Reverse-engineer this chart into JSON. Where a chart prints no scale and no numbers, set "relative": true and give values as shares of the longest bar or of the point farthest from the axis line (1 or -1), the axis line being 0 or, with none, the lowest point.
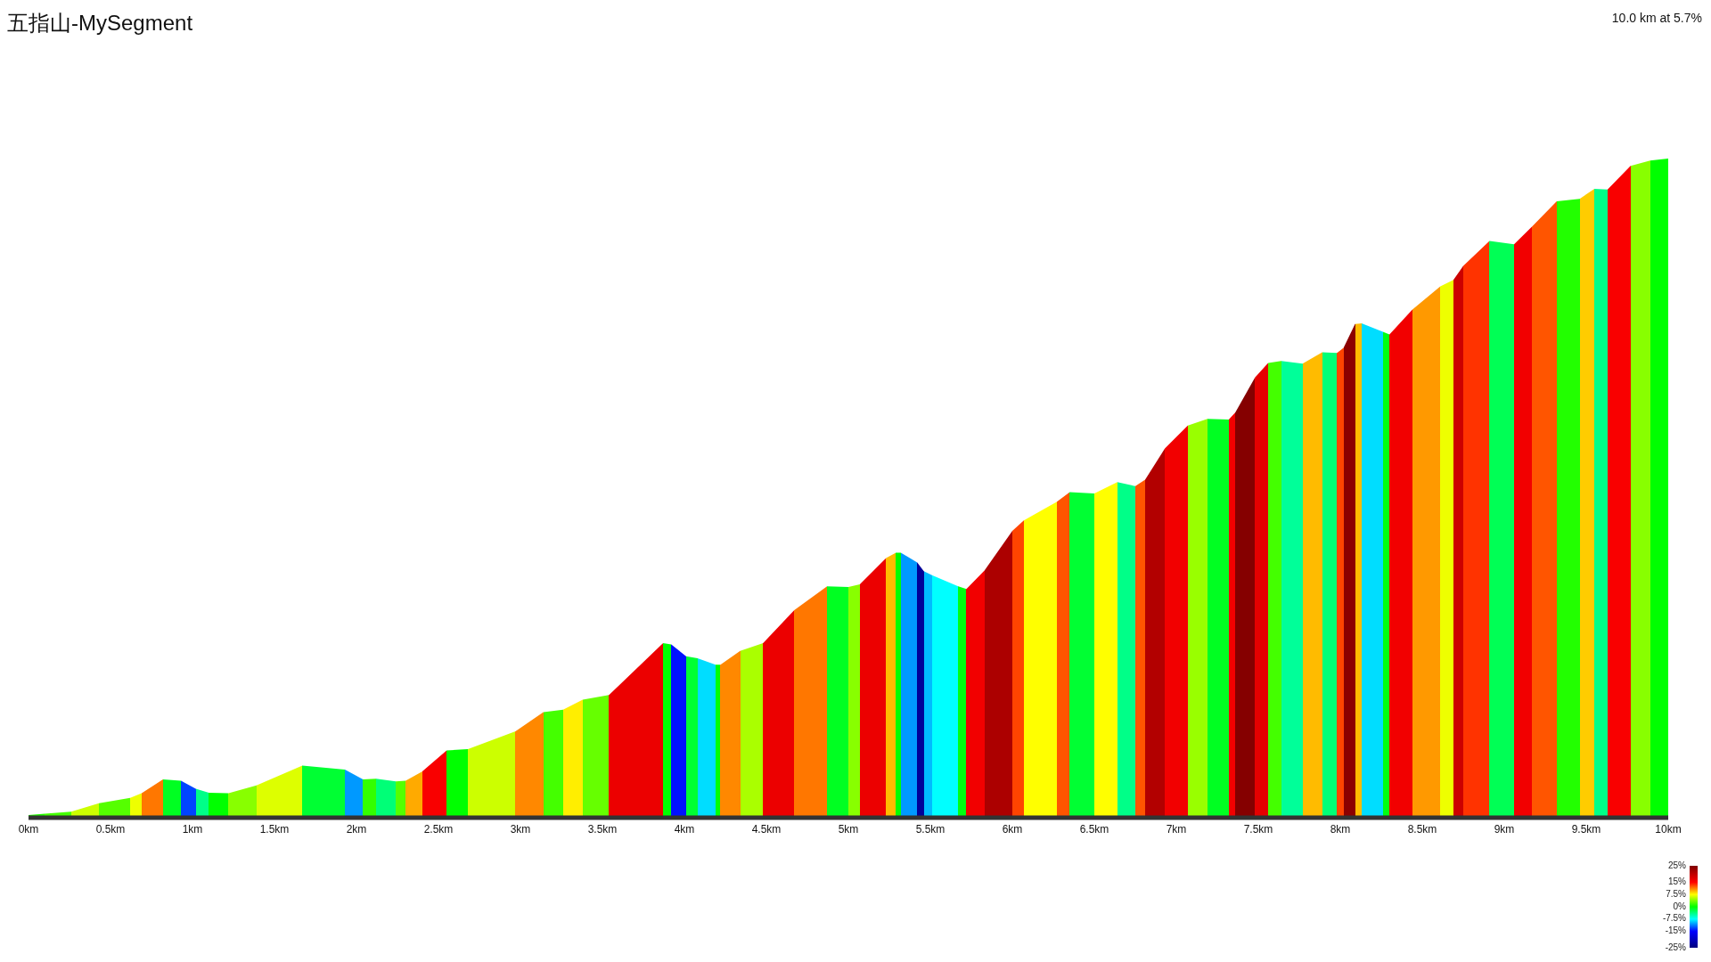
{
  "chart_data": {
    "type": "area",
    "title": "五指山-MySegment",
    "subtitle": "10.0 km at 5.7%",
    "relative": true,
    "x": [
      0,
      0.1,
      0.26,
      0.43,
      0.62,
      0.69,
      0.82,
      0.93,
      1.02,
      1.1,
      1.22,
      1.39,
      1.67,
      1.93,
      2.04,
      2.12,
      2.24,
      2.3,
      2.4,
      2.55,
      2.68,
      2.97,
      3.14,
      3.26,
      3.38,
      3.54,
      3.87,
      3.92,
      4.01,
      4.08,
      4.19,
      4.22,
      4.34,
      4.48,
      4.67,
      4.87,
      5.0,
      5.07,
      5.23,
      5.29,
      5.32,
      5.42,
      5.46,
      5.51,
      5.67,
      5.72,
      5.83,
      6.0,
      6.07,
      6.27,
      6.35,
      6.5,
      6.64,
      6.75,
      6.81,
      6.93,
      7.07,
      7.19,
      7.32,
      7.36,
      7.48,
      7.56,
      7.64,
      7.77,
      7.89,
      7.98,
      8.02,
      8.09,
      8.13,
      8.26,
      8.3,
      8.44,
      8.61,
      8.69,
      8.75,
      8.91,
      9.06,
      9.17,
      9.32,
      9.46,
      9.55,
      9.63,
      9.77,
      9.89,
      10
    ],
    "values": [
      0.004,
      0.006,
      0.009,
      0.022,
      0.03,
      0.037,
      0.058,
      0.056,
      0.044,
      0.038,
      0.037,
      0.049,
      0.079,
      0.073,
      0.058,
      0.059,
      0.055,
      0.056,
      0.07,
      0.102,
      0.104,
      0.131,
      0.16,
      0.164,
      0.179,
      0.186,
      0.265,
      0.263,
      0.245,
      0.242,
      0.232,
      0.232,
      0.253,
      0.265,
      0.315,
      0.351,
      0.35,
      0.354,
      0.394,
      0.402,
      0.402,
      0.387,
      0.374,
      0.368,
      0.351,
      0.347,
      0.375,
      0.435,
      0.451,
      0.479,
      0.494,
      0.492,
      0.509,
      0.503,
      0.513,
      0.56,
      0.595,
      0.605,
      0.604,
      0.615,
      0.668,
      0.69,
      0.693,
      0.689,
      0.706,
      0.705,
      0.713,
      0.749,
      0.75,
      0.737,
      0.733,
      0.771,
      0.806,
      0.816,
      0.837,
      0.875,
      0.87,
      0.897,
      0.935,
      0.939,
      0.954,
      0.953,
      0.989,
      0.997,
      1
    ],
    "colors": [
      "#22ff00",
      "#44ff00",
      "#ccff00",
      "#55ff00",
      "#eeff00",
      "#ff7700",
      "#00ff22",
      "#0044ff",
      "#00ff88",
      "#00ff00",
      "#88ff00",
      "#ddff00",
      "#00ff33",
      "#0099ff",
      "#33ff00",
      "#00ff77",
      "#55ff00",
      "#ffaa00",
      "#f90000",
      "#00ff00",
      "#ccff00",
      "#ff8800",
      "#44ff00",
      "#ffee00",
      "#66ff00",
      "#ec0000",
      "#00ff00",
      "#0011ff",
      "#00ff33",
      "#00ddff",
      "#00ff00",
      "#ff8800",
      "#aaff00",
      "#ec0000",
      "#ff7700",
      "#00ff22",
      "#88ff00",
      "#ec0000",
      "#ffbb00",
      "#00ff00",
      "#0099ff",
      "#000099",
      "#00bbff",
      "#00ffff",
      "#00ff11",
      "#f20000",
      "#ac0000",
      "#ff4400",
      "#ffff00",
      "#ff5500",
      "#00ff33",
      "#ffff00",
      "#00ff88",
      "#ff5500",
      "#b20000",
      "#f20000",
      "#99ff00",
      "#00ff22",
      "#f20000",
      "#850000",
      "#e50000",
      "#44ff00",
      "#00ff99",
      "#ffbb00",
      "#00ff77",
      "#ff4400",
      "#8c0000",
      "#ffbb00",
      "#00ddff",
      "#00ff11",
      "#f20000",
      "#ff9900",
      "#eeff00",
      "#cc0000",
      "#ff3300",
      "#00ff55",
      "#f20000",
      "#ff5500",
      "#22ff00",
      "#ffcc00",
      "#00ff88",
      "#f90000",
      "#88ff00",
      "#00ff00",
      "#00ff00"
    ],
    "xlim": [
      0,
      10
    ],
    "xticks": [
      {
        "value": 0,
        "label": "0km"
      },
      {
        "value": 0.5,
        "label": "0.5km"
      },
      {
        "value": 1,
        "label": "1km"
      },
      {
        "value": 1.5,
        "label": "1.5km"
      },
      {
        "value": 2,
        "label": "2km"
      },
      {
        "value": 2.5,
        "label": "2.5km"
      },
      {
        "value": 3,
        "label": "3km"
      },
      {
        "value": 3.5,
        "label": "3.5km"
      },
      {
        "value": 4,
        "label": "4km"
      },
      {
        "value": 4.5,
        "label": "4.5km"
      },
      {
        "value": 5,
        "label": "5km"
      },
      {
        "value": 5.5,
        "label": "5.5km"
      },
      {
        "value": 6,
        "label": "6km"
      },
      {
        "value": 6.5,
        "label": "6.5km"
      },
      {
        "value": 7,
        "label": "7km"
      },
      {
        "value": 7.5,
        "label": "7.5km"
      },
      {
        "value": 8,
        "label": "8km"
      },
      {
        "value": 8.5,
        "label": "8.5km"
      },
      {
        "value": 9,
        "label": "9km"
      },
      {
        "value": 9.5,
        "label": "9.5km"
      },
      {
        "value": 10,
        "label": "10km"
      }
    ],
    "clim": [
      -25,
      25
    ],
    "cticks": [
      {
        "value": 25,
        "label": "25%"
      },
      {
        "value": 15,
        "label": "15%"
      },
      {
        "value": 7.5,
        "label": "7.5%"
      },
      {
        "value": 0,
        "label": "0%"
      },
      {
        "value": -7.5,
        "label": "-7.5%"
      },
      {
        "value": -15,
        "label": "-15%"
      },
      {
        "value": -25,
        "label": "-25%"
      }
    ]
  }
}
